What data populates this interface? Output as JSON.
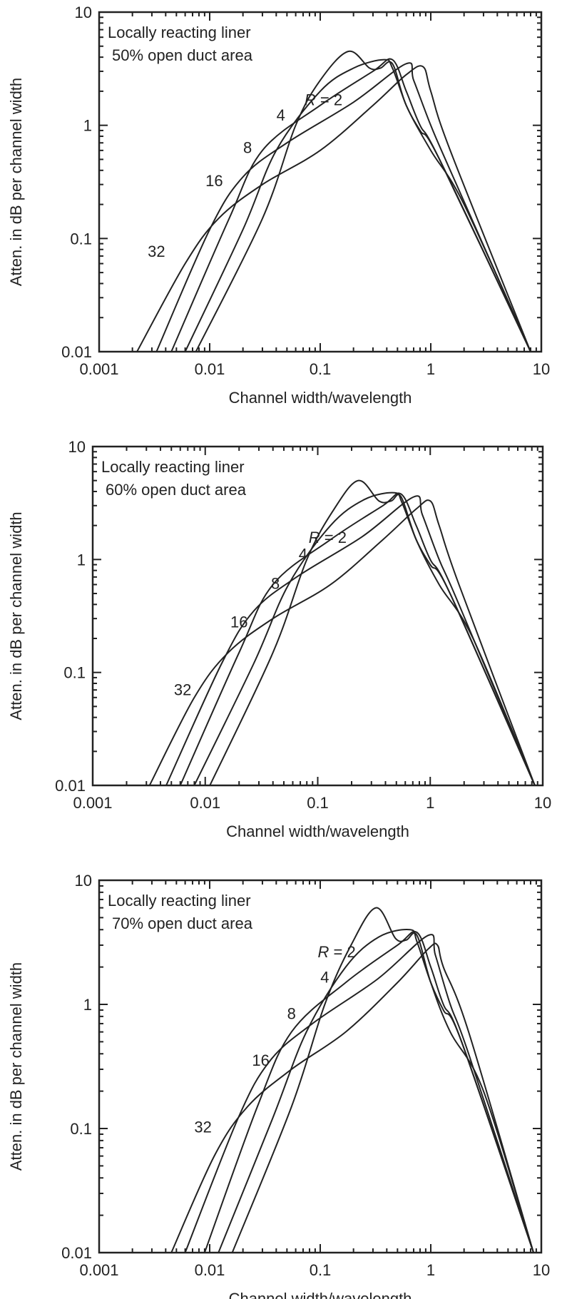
{
  "chart_data": [
    {
      "type": "line",
      "title_lines": [
        "Locally reacting liner",
        "50% open duct area"
      ],
      "xlabel": "Channel width/wavelength",
      "ylabel": "Atten. in dB per channel width",
      "xscale": "log",
      "yscale": "log",
      "xlim": [
        0.001,
        10
      ],
      "ylim": [
        0.01,
        10
      ],
      "xticks": [
        "0.001",
        "0.01",
        "0.1",
        "1",
        "10"
      ],
      "yticks": [
        "0.01",
        "0.1",
        "1",
        "10"
      ],
      "grid": false,
      "series": [
        {
          "name": "R = 2",
          "points": [
            [
              0.0075,
              0.01
            ],
            [
              0.03,
              0.15
            ],
            [
              0.06,
              1
            ],
            [
              0.1,
              2.5
            ],
            [
              0.18,
              4.5
            ],
            [
              0.28,
              3.2
            ],
            [
              0.35,
              3.2
            ],
            [
              0.45,
              3.5
            ],
            [
              0.6,
              1.5
            ],
            [
              1,
              0.6
            ],
            [
              2,
              0.2
            ],
            [
              8,
              0.01
            ]
          ]
        },
        {
          "name": "4",
          "points": [
            [
              0.006,
              0.01
            ],
            [
              0.02,
              0.12
            ],
            [
              0.04,
              0.6
            ],
            [
              0.1,
              2
            ],
            [
              0.2,
              3.2
            ],
            [
              0.38,
              3.8
            ],
            [
              0.45,
              3.2
            ],
            [
              0.6,
              1.5
            ],
            [
              0.8,
              0.9
            ],
            [
              1.2,
              0.5
            ],
            [
              8,
              0.01
            ]
          ]
        },
        {
          "name": "8",
          "points": [
            [
              0.0045,
              0.01
            ],
            [
              0.015,
              0.15
            ],
            [
              0.03,
              0.6
            ],
            [
              0.1,
              1.5
            ],
            [
              0.3,
              3
            ],
            [
              0.45,
              3.8
            ],
            [
              0.6,
              2
            ],
            [
              0.8,
              1
            ],
            [
              1.2,
              0.5
            ],
            [
              8,
              0.01
            ]
          ]
        },
        {
          "name": "16",
          "points": [
            [
              0.0033,
              0.01
            ],
            [
              0.01,
              0.12
            ],
            [
              0.02,
              0.35
            ],
            [
              0.05,
              0.7
            ],
            [
              0.2,
              1.6
            ],
            [
              0.6,
              3.5
            ],
            [
              0.7,
              2.5
            ],
            [
              1,
              1
            ],
            [
              1.5,
              0.4
            ],
            [
              8,
              0.01
            ]
          ]
        },
        {
          "name": "32",
          "points": [
            [
              0.0022,
              0.01
            ],
            [
              0.006,
              0.06
            ],
            [
              0.012,
              0.15
            ],
            [
              0.03,
              0.3
            ],
            [
              0.1,
              0.6
            ],
            [
              0.3,
              1.5
            ],
            [
              0.6,
              2.8
            ],
            [
              0.85,
              3.3
            ],
            [
              1,
              2
            ],
            [
              1.5,
              0.6
            ],
            [
              8,
              0.01
            ]
          ]
        }
      ],
      "annotations": [
        {
          "text_prefix": "R",
          "text": " = 2",
          "x": 0.072,
          "y": 1.5
        },
        {
          "text": "4",
          "x": 0.044,
          "y": 1.1
        },
        {
          "text": "8",
          "x": 0.022,
          "y": 0.57
        },
        {
          "text": "16",
          "x": 0.011,
          "y": 0.29
        },
        {
          "text": "32",
          "x": 0.0033,
          "y": 0.069
        }
      ]
    },
    {
      "type": "line",
      "title_lines": [
        "Locally reacting liner",
        "60% open duct area"
      ],
      "xlabel": "Channel width/wavelength",
      "ylabel": "Atten. in dB per channel width",
      "xscale": "log",
      "yscale": "log",
      "xlim": [
        0.001,
        10
      ],
      "ylim": [
        0.01,
        10
      ],
      "xticks": [
        "0.001",
        "0.01",
        "0.1",
        "1",
        "10"
      ],
      "yticks": [
        "0.01",
        "0.1",
        "1",
        "10"
      ],
      "grid": false,
      "series": [
        {
          "name": "R = 2",
          "points": [
            [
              0.011,
              0.01
            ],
            [
              0.04,
              0.15
            ],
            [
              0.08,
              1
            ],
            [
              0.14,
              2.8
            ],
            [
              0.23,
              5
            ],
            [
              0.35,
              3.3
            ],
            [
              0.45,
              3.3
            ],
            [
              0.55,
              3.6
            ],
            [
              0.75,
              1.5
            ],
            [
              1.2,
              0.6
            ],
            [
              2.4,
              0.2
            ],
            [
              8.5,
              0.01
            ]
          ]
        },
        {
          "name": "4",
          "points": [
            [
              0.008,
              0.01
            ],
            [
              0.027,
              0.12
            ],
            [
              0.055,
              0.6
            ],
            [
              0.13,
              2
            ],
            [
              0.26,
              3.4
            ],
            [
              0.48,
              3.9
            ],
            [
              0.56,
              3.2
            ],
            [
              0.75,
              1.5
            ],
            [
              1,
              0.9
            ],
            [
              1.5,
              0.5
            ],
            [
              8.5,
              0.01
            ]
          ]
        },
        {
          "name": "8",
          "points": [
            [
              0.006,
              0.01
            ],
            [
              0.02,
              0.15
            ],
            [
              0.04,
              0.6
            ],
            [
              0.13,
              1.5
            ],
            [
              0.38,
              3
            ],
            [
              0.55,
              3.8
            ],
            [
              0.75,
              2
            ],
            [
              1,
              1
            ],
            [
              1.5,
              0.5
            ],
            [
              8.5,
              0.01
            ]
          ]
        },
        {
          "name": "16",
          "points": [
            [
              0.0045,
              0.01
            ],
            [
              0.014,
              0.12
            ],
            [
              0.027,
              0.35
            ],
            [
              0.065,
              0.7
            ],
            [
              0.25,
              1.6
            ],
            [
              0.72,
              3.6
            ],
            [
              0.85,
              2.5
            ],
            [
              1.2,
              1
            ],
            [
              1.8,
              0.4
            ],
            [
              8.5,
              0.01
            ]
          ]
        },
        {
          "name": "32",
          "points": [
            [
              0.0032,
              0.01
            ],
            [
              0.008,
              0.06
            ],
            [
              0.016,
              0.15
            ],
            [
              0.04,
              0.3
            ],
            [
              0.13,
              0.6
            ],
            [
              0.38,
              1.5
            ],
            [
              0.75,
              2.8
            ],
            [
              1,
              3.3
            ],
            [
              1.2,
              2
            ],
            [
              1.8,
              0.6
            ],
            [
              8.5,
              0.01
            ]
          ]
        }
      ],
      "annotations": [
        {
          "text_prefix": "R",
          "text": " = 2",
          "x": 0.083,
          "y": 1.4
        },
        {
          "text": "4",
          "x": 0.074,
          "y": 1.0
        },
        {
          "text": "8",
          "x": 0.042,
          "y": 0.55
        },
        {
          "text": "16",
          "x": 0.02,
          "y": 0.25
        },
        {
          "text": "32",
          "x": 0.0063,
          "y": 0.063
        }
      ]
    },
    {
      "type": "line",
      "title_lines": [
        "Locally reacting liner",
        "70% open duct area"
      ],
      "xlabel": "Channel width/wavelength",
      "ylabel": "Atten. in dB per channel width",
      "xscale": "log",
      "yscale": "log",
      "xlim": [
        0.001,
        10
      ],
      "ylim": [
        0.01,
        10
      ],
      "xticks": [
        "0.001",
        "0.01",
        "0.1",
        "1",
        "10"
      ],
      "yticks": [
        "0.01",
        "0.1",
        "1",
        "10"
      ],
      "grid": false,
      "series": [
        {
          "name": "R = 2",
          "points": [
            [
              0.016,
              0.01
            ],
            [
              0.055,
              0.15
            ],
            [
              0.11,
              1
            ],
            [
              0.19,
              3
            ],
            [
              0.32,
              6
            ],
            [
              0.48,
              3.4
            ],
            [
              0.6,
              3.3
            ],
            [
              0.75,
              3.6
            ],
            [
              1,
              1.5
            ],
            [
              1.5,
              0.6
            ],
            [
              3,
              0.2
            ],
            [
              8.5,
              0.01
            ]
          ]
        },
        {
          "name": "4",
          "points": [
            [
              0.012,
              0.01
            ],
            [
              0.037,
              0.12
            ],
            [
              0.075,
              0.6
            ],
            [
              0.17,
              2
            ],
            [
              0.34,
              3.5
            ],
            [
              0.65,
              4
            ],
            [
              0.75,
              3.2
            ],
            [
              1,
              1.5
            ],
            [
              1.3,
              0.9
            ],
            [
              1.9,
              0.5
            ],
            [
              8.5,
              0.01
            ]
          ]
        },
        {
          "name": "8",
          "points": [
            [
              0.009,
              0.01
            ],
            [
              0.027,
              0.15
            ],
            [
              0.055,
              0.6
            ],
            [
              0.17,
              1.5
            ],
            [
              0.5,
              3
            ],
            [
              0.75,
              3.8
            ],
            [
              1,
              2
            ],
            [
              1.3,
              1
            ],
            [
              1.9,
              0.5
            ],
            [
              8.5,
              0.01
            ]
          ]
        },
        {
          "name": "16",
          "points": [
            [
              0.006,
              0.01
            ],
            [
              0.018,
              0.12
            ],
            [
              0.035,
              0.35
            ],
            [
              0.085,
              0.7
            ],
            [
              0.33,
              1.6
            ],
            [
              0.95,
              3.6
            ],
            [
              1.1,
              2.5
            ],
            [
              1.5,
              1
            ],
            [
              2.2,
              0.4
            ],
            [
              8.5,
              0.01
            ]
          ]
        },
        {
          "name": "32",
          "points": [
            [
              0.0045,
              0.01
            ],
            [
              0.011,
              0.06
            ],
            [
              0.022,
              0.15
            ],
            [
              0.055,
              0.3
            ],
            [
              0.17,
              0.6
            ],
            [
              0.5,
              1.5
            ],
            [
              0.95,
              2.8
            ],
            [
              1.15,
              3
            ],
            [
              1.3,
              2
            ],
            [
              2.2,
              0.6
            ],
            [
              8.5,
              0.01
            ]
          ]
        }
      ],
      "annotations": [
        {
          "text_prefix": "R",
          "text": " = 2",
          "x": 0.095,
          "y": 2.4
        },
        {
          "text": "4",
          "x": 0.11,
          "y": 1.5
        },
        {
          "text": "8",
          "x": 0.055,
          "y": 0.76
        },
        {
          "text": "16",
          "x": 0.029,
          "y": 0.32
        },
        {
          "text": "32",
          "x": 0.0087,
          "y": 0.093
        }
      ]
    }
  ]
}
